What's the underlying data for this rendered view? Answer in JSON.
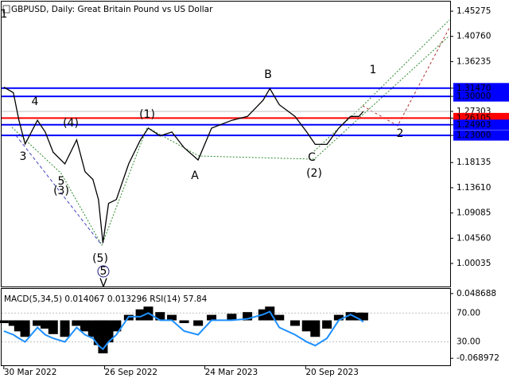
{
  "chart_data": [
    {
      "type": "line",
      "title": "GBPUSD, Daily:  Great Britain Pound vs US Dollar",
      "color": "#000000",
      "xlim": [
        "2022-03-26",
        "2024-06-04"
      ],
      "ylim": [
        0.959,
        1.47
      ],
      "yticks": [
        1.45275,
        {
          "value": 1.4076,
          "label": "1.40760"
        },
        1.36235,
        {
          "value": 1.3147,
          "label": "1.31470"
        },
        {
          "value": 1.3,
          "label": "1.30000"
        },
        1.27303,
        1.26105,
        1.24903,
        {
          "value": 1.23,
          "label": "1.23000"
        },
        1.18135,
        {
          "value": 1.1361,
          "label": "1.13610"
        },
        1.09085,
        {
          "value": 1.0456,
          "label": "1.04560"
        },
        1.00035
      ],
      "levels": [
        {
          "value": 1.3147,
          "color": "#0000ff"
        },
        {
          "value": 1.3,
          "color": "#0000ff"
        },
        {
          "value": 1.27303,
          "color": "#c0c0c0"
        },
        {
          "value": 1.26105,
          "color": "#ff0000"
        },
        {
          "value": 1.24903,
          "color": "#0000ff"
        },
        {
          "value": 1.23,
          "color": "#0000ff"
        }
      ],
      "x": [
        "2022-03-30",
        "2022-04-16",
        "2022-04-26",
        "2022-05-07",
        "2022-05-29",
        "2022-06-12",
        "2022-06-26",
        "2022-07-17",
        "2022-08-07",
        "2022-08-22",
        "2022-09-05",
        "2022-09-15",
        "2022-09-23",
        "2022-10-03",
        "2022-10-17",
        "2022-11-08",
        "2022-11-29",
        "2022-12-13",
        "2023-01-03",
        "2023-01-24",
        "2023-02-15",
        "2023-03-12",
        "2023-04-05",
        "2023-05-11",
        "2023-06-08",
        "2023-07-06",
        "2023-07-18",
        "2023-08-04",
        "2023-09-01",
        "2023-09-22",
        "2023-10-07",
        "2023-10-28",
        "2023-11-18",
        "2023-12-09",
        "2023-12-24",
        "2024-01-01"
      ],
      "values": [
        1.3166,
        1.3067,
        1.257,
        1.2145,
        1.257,
        1.236,
        1.2,
        1.179,
        1.222,
        1.165,
        1.151,
        1.115,
        1.037,
        1.108,
        1.115,
        1.179,
        1.222,
        1.243,
        1.229,
        1.236,
        1.208,
        1.186,
        1.243,
        1.257,
        1.264,
        1.293,
        1.314,
        1.285,
        1.264,
        1.236,
        1.214,
        1.214,
        1.243,
        1.264,
        1.264,
        1.273
      ],
      "annotations": [
        {
          "text": "1",
          "color": "#b03030"
        },
        {
          "text": "4",
          "color": "#b03030"
        },
        {
          "text": "3",
          "color": "#b03030"
        },
        {
          "text": "5",
          "color": "#b03030"
        },
        {
          "text": "(4)",
          "color": "#2e8b2e"
        },
        {
          "text": "(3)",
          "color": "#2e8b2e"
        },
        {
          "text": "(5)",
          "color": "#2e8b2e"
        },
        {
          "text": "5",
          "color": "#1a1a80"
        },
        {
          "text": "V",
          "color": "#d02020"
        },
        {
          "text": "(1)",
          "color": "#2e8b2e"
        },
        {
          "text": "A",
          "color": "#b03030"
        },
        {
          "text": "B",
          "color": "#b03030"
        },
        {
          "text": "C",
          "color": "#b03030"
        },
        {
          "text": "(2)",
          "color": "#2e8b2e"
        },
        {
          "text": "1",
          "color": "#b03030"
        },
        {
          "text": "2",
          "color": "#b03030"
        }
      ]
    },
    {
      "type": "macd",
      "title": "MACD(5,34,5) 0.014067 0.013296 RSI(14) 57.84",
      "xlim": [
        "2022-03-26",
        "2024-06-04"
      ],
      "ylim": [
        -0.0817,
        0.0572
      ],
      "yticks": [
        0.048688,
        -0.068972
      ],
      "y2lim": [
        -2.4,
        103.5
      ],
      "y2ticks": [
        {
          "value": 70,
          "label": "70.00"
        },
        {
          "value": 30,
          "label": "30.00"
        }
      ],
      "xticks": [
        {
          "value": "2022-03-30",
          "label": "30 Mar 2022"
        },
        {
          "value": "2022-09-26",
          "label": "26 Sep 2022"
        },
        {
          "value": "2023-03-24",
          "label": "24 Mar 2023"
        },
        {
          "value": "2023-09-20",
          "label": "20 Sep 2023"
        }
      ],
      "x": [
        "2022-03-30",
        "2022-04-16",
        "2022-04-26",
        "2022-05-07",
        "2022-05-29",
        "2022-06-12",
        "2022-06-26",
        "2022-07-17",
        "2022-08-07",
        "2022-08-22",
        "2022-09-05",
        "2022-09-15",
        "2022-09-23",
        "2022-10-03",
        "2022-10-17",
        "2022-11-08",
        "2022-11-29",
        "2022-12-13",
        "2023-01-03",
        "2023-01-24",
        "2023-02-15",
        "2023-03-12",
        "2023-04-05",
        "2023-05-11",
        "2023-06-08",
        "2023-07-06",
        "2023-07-18",
        "2023-08-04",
        "2023-09-01",
        "2023-09-22",
        "2023-10-07",
        "2023-10-28",
        "2023-11-18",
        "2023-12-09",
        "2023-12-24",
        "2024-01-01"
      ],
      "series": [
        {
          "color": "#000000",
          "values": [
            -0.005,
            -0.01,
            -0.02,
            -0.03,
            -0.01,
            -0.015,
            -0.025,
            -0.03,
            -0.01,
            -0.02,
            -0.03,
            -0.045,
            -0.06,
            -0.04,
            -0.02,
            0.01,
            0.02,
            0.025,
            0.015,
            0.01,
            -0.005,
            -0.01,
            0.01,
            0.012,
            0.015,
            0.02,
            0.025,
            0.01,
            -0.01,
            -0.02,
            -0.03,
            -0.015,
            0.01,
            0.015,
            0.014,
            0.014067
          ]
        },
        {
          "color": "#1e90ff",
          "axis": "y2",
          "values": [
            45,
            40,
            35,
            30,
            50,
            40,
            35,
            30,
            50,
            40,
            35,
            25,
            20,
            30,
            40,
            65,
            65,
            70,
            60,
            60,
            45,
            40,
            60,
            60,
            62,
            68,
            72,
            50,
            40,
            30,
            25,
            35,
            60,
            68,
            62,
            57.84
          ]
        }
      ]
    }
  ]
}
